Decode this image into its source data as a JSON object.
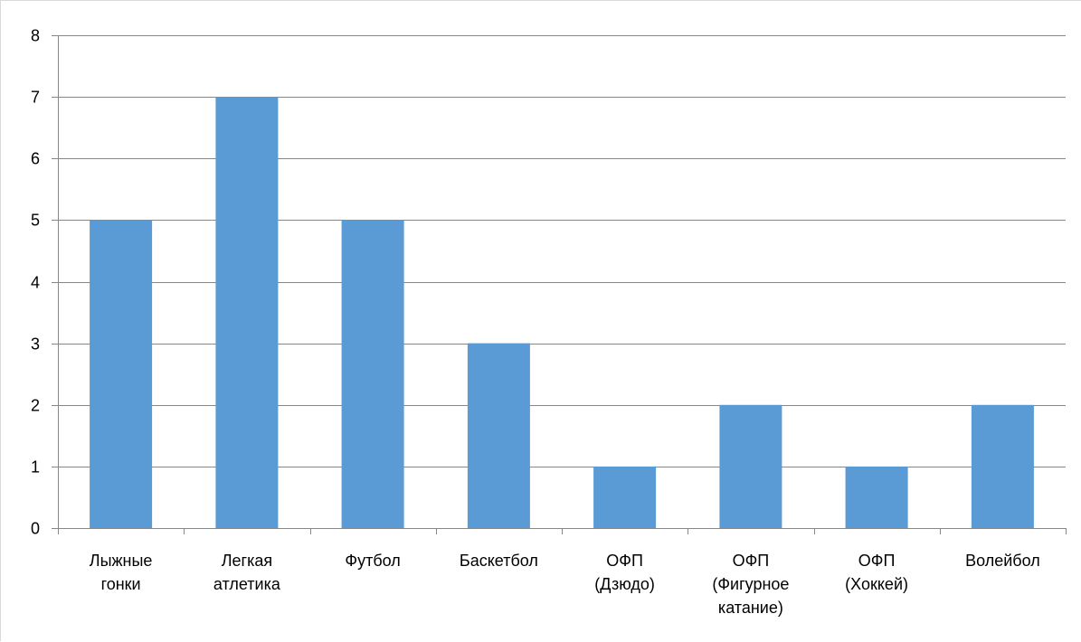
{
  "chart_data": {
    "type": "bar",
    "title": "",
    "xlabel": "",
    "ylabel": "",
    "categories": [
      "Лыжные гонки",
      "Легкая атлетика",
      "Футбол",
      "Баскетбол",
      "ОФП (Дзюдо)",
      "ОФП (Фигурное катание)",
      "ОФП (Хоккей)",
      "Волейбол"
    ],
    "category_label_lines": [
      [
        "Лыжные",
        "гонки"
      ],
      [
        "Легкая",
        "атлетика"
      ],
      [
        "Футбол"
      ],
      [
        "Баскетбол"
      ],
      [
        "ОФП",
        "(Дзюдо)"
      ],
      [
        "ОФП",
        "(Фигурное",
        "катание)"
      ],
      [
        "ОФП",
        "(Хоккей)"
      ],
      [
        "Волейбол"
      ]
    ],
    "values": [
      5,
      7,
      5,
      3,
      1,
      2,
      1,
      2
    ],
    "ylim": [
      0,
      8
    ],
    "yticks": [
      0,
      1,
      2,
      3,
      4,
      5,
      6,
      7,
      8
    ],
    "grid": true,
    "legend": "none",
    "colors": {
      "bar": "#5b9bd5",
      "grid": "#878787",
      "axis": "#878787",
      "text": "#000000"
    }
  }
}
